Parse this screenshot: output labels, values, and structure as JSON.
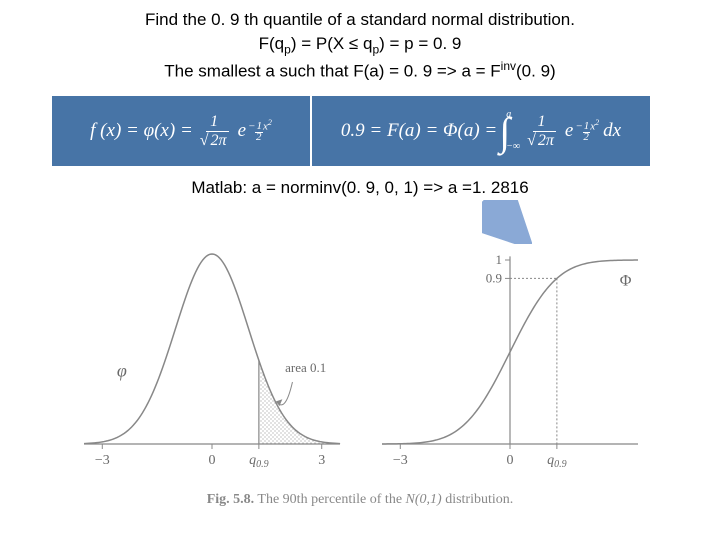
{
  "header": {
    "line1": "Find the 0. 9 th quantile of a standard normal distribution.",
    "line2_pre": "F(q",
    "line2_sub1": "p",
    "line2_mid1": ") = P(X ≤ q",
    "line2_sub2": "p",
    "line2_mid2": ") = p = 0. 9",
    "line3_pre": "The smallest a such that F(a) = 0. 9  =>  a = F",
    "line3_sup": "inv",
    "line3_post": "(0. 9)"
  },
  "formula_left": {
    "lhs": "f (x) = φ(x) =",
    "frac_num": "1",
    "frac_den_sqrt": "2π",
    "e": "e",
    "exp_num": "1",
    "exp_den": "2",
    "exp_tail": "x",
    "exp_sq": "2",
    "exp_neg": "−"
  },
  "formula_right": {
    "lhs": "0.9 = F(a) = Φ(a) =",
    "int_upper": "a",
    "int_lower": "−∞",
    "frac_num": "1",
    "frac_den_sqrt": "2π",
    "e": "e",
    "exp_num": "1",
    "exp_den": "2",
    "exp_tail": "x",
    "exp_sq": "2",
    "exp_neg": "−",
    "dx": "dx"
  },
  "matlab": {
    "text": "Matlab: a = norminv(0. 9, 0, 1)  =>   a =1. 2816"
  },
  "arrow": {
    "color": "#8aa9d6"
  },
  "charts": {
    "stroke": "#888888",
    "hatch": "#9a9a9a",
    "text": "#6a6a6a",
    "pdf": {
      "phi_label": "φ",
      "area_label": "area 0.1",
      "ticks": [
        "−3",
        "0",
        "3"
      ],
      "q_label_pre": "q",
      "q_label_sub": "0.9",
      "q_x": 1.2816
    },
    "cdf": {
      "Phi_label": "Φ",
      "yticks": [
        "0.9",
        "1"
      ],
      "ticks": [
        "−3",
        "0"
      ],
      "q_label_pre": "q",
      "q_label_sub": "0.9",
      "q_x": 1.2816,
      "q_y": 0.9
    }
  },
  "caption": {
    "bold": "Fig. 5.8.",
    "rest_pre": " The 90th percentile of the ",
    "dist": "N(0,1)",
    "rest_post": " distribution."
  }
}
